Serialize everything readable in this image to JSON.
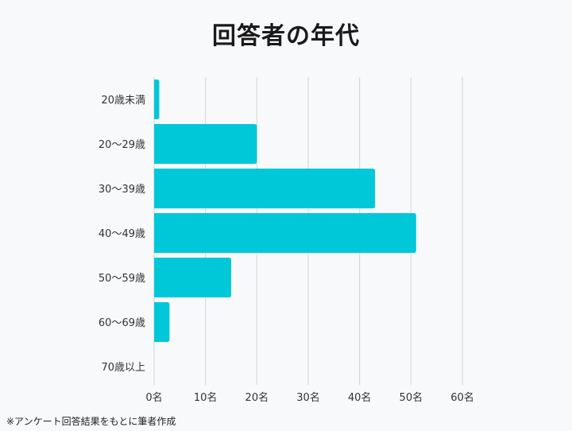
{
  "header": {
    "title": "回答者の年代"
  },
  "footnote": "※アンケート回答結果をもとに筆者作成",
  "chart_data": {
    "type": "bar",
    "orientation": "horizontal",
    "title": "回答者の年代",
    "categories": [
      "20歳未満",
      "20〜29歳",
      "30〜39歳",
      "40〜49歳",
      "50〜59歳",
      "60〜69歳",
      "70歳以上"
    ],
    "values": [
      1,
      20,
      43,
      51,
      15,
      3,
      0
    ],
    "x_ticks": [
      "0名",
      "10名",
      "20名",
      "30名",
      "40名",
      "50名",
      "60名"
    ],
    "xlim": [
      0,
      60
    ],
    "grid": "vertical",
    "bar_color": "#00c8d9",
    "grid_color": "#d3d3d3",
    "xlabel": "",
    "ylabel": ""
  }
}
